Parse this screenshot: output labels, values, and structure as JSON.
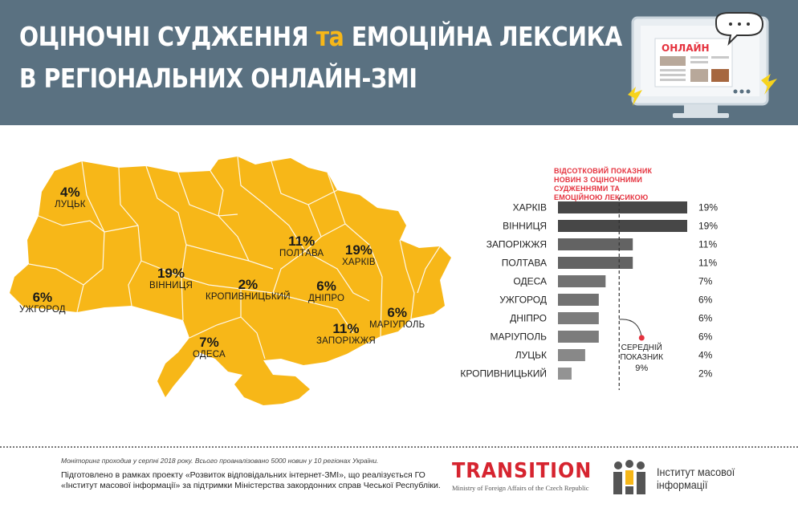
{
  "header": {
    "title_line1_a": "ОЦІНОЧНІ СУДЖЕННЯ ",
    "title_line1_b": "та",
    "title_line1_c": " ЕМОЦІЙНА ЛЕКСИКА",
    "title_line2": "В РЕГІОНАЛЬНИХ ОНЛАЙН-ЗМІ",
    "monitor_label": "ОНЛАЙН",
    "accent_color": "#f7b718",
    "background_color": "#5a7181"
  },
  "map": {
    "fill_color": "#f7b718",
    "labels": [
      {
        "city": "ЛУЦЬК",
        "pct": "4%"
      },
      {
        "city": "УЖГОРОД",
        "pct": "6%"
      },
      {
        "city": "ВІННИЦЯ",
        "pct": "19%"
      },
      {
        "city": "КРОПИВНИЦЬКИЙ",
        "pct": "2%"
      },
      {
        "city": "ОДЕСА",
        "pct": "7%"
      },
      {
        "city": "ПОЛТАВА",
        "pct": "11%"
      },
      {
        "city": "ХАРКІВ",
        "pct": "19%"
      },
      {
        "city": "ДНІПРО",
        "pct": "6%"
      },
      {
        "city": "МАРІУПОЛЬ",
        "pct": "6%"
      },
      {
        "city": "ЗАПОРІЖЖЯ",
        "pct": "11%"
      }
    ]
  },
  "chart_data": {
    "type": "bar",
    "orientation": "horizontal",
    "title": "ВІДСОТКОВИЙ ПОКАЗНИК НОВИН З ОЦІНОЧНИМИ СУДЖЕННЯМИ ТА ЕМОЦІЙНОЮ ЛЕКСИКОЮ",
    "categories": [
      "ХАРКІВ",
      "ВІННИЦЯ",
      "ЗАПОРІЖЖЯ",
      "ПОЛТАВА",
      "ОДЕСА",
      "УЖГОРОД",
      "ДНІПРО",
      "МАРІУПОЛЬ",
      "ЛУЦЬК",
      "КРОПИВНИЦЬКИЙ"
    ],
    "values": [
      19,
      19,
      11,
      11,
      7,
      6,
      6,
      6,
      4,
      2
    ],
    "value_labels": [
      "19%",
      "19%",
      "11%",
      "11%",
      "7%",
      "6%",
      "6%",
      "6%",
      "4%",
      "2%"
    ],
    "xlim": [
      0,
      19
    ],
    "grid": false,
    "bar_colors": [
      "#474747",
      "#474747",
      "#636363",
      "#636363",
      "#727272",
      "#727272",
      "#7c7c7c",
      "#7c7c7c",
      "#888888",
      "#939393"
    ],
    "reference_line": {
      "value": 9,
      "label_line1": "СЕРЕДНІЙ",
      "label_line2": "ПОКАЗНИК",
      "label_value": "9%"
    },
    "accent_color": "#e5323e"
  },
  "footer": {
    "note": "Моніторинг проходив у серпні 2018 року. Всього проаналізовано 5000 новин у 10 регіонах України.",
    "credits": "Підготовлено в рамках проекту «Розвиток відповідальних інтернет-ЗМІ», що реалізується ГО «Інститут масової інформації» за підтримки Міністерства закордонних справ Чеської Республіки.",
    "transition_brand": "TRANSITION",
    "transition_sub": "Ministry of Foreign Affairs of the Czech Republic",
    "imi_line1": "Інститут масової",
    "imi_line2": "інформації"
  }
}
